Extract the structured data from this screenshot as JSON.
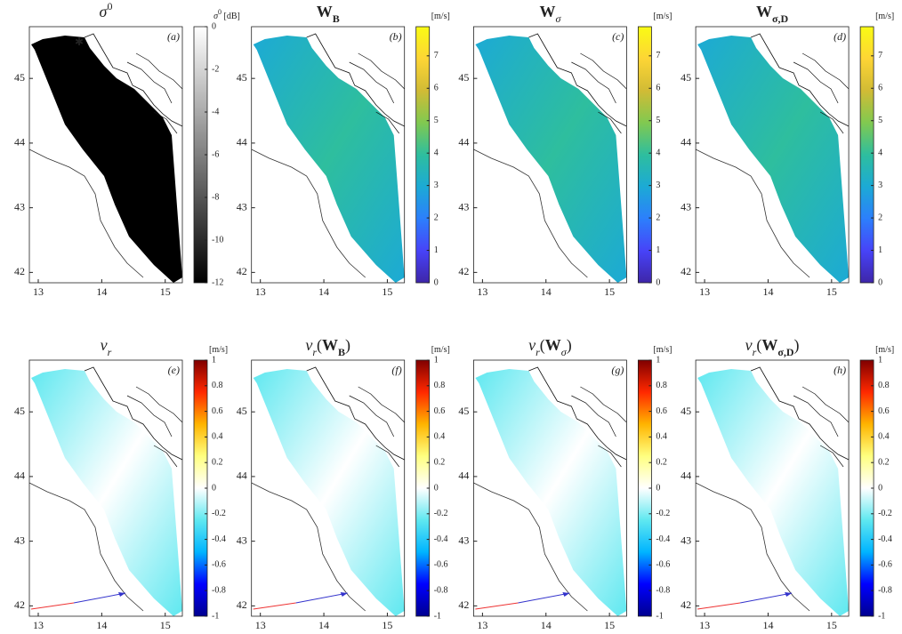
{
  "chart_data": [
    {
      "type": "map",
      "title": [
        {
          "text": "σ",
          "style": "italic"
        },
        {
          "text": "0",
          "style": "sup"
        }
      ],
      "panel_label": "(a)",
      "xlim": [
        12.86,
        15.27
      ],
      "xticks": [
        13,
        14,
        15
      ],
      "ylim": [
        41.84,
        45.8
      ],
      "yticks": [
        42,
        43,
        44,
        45
      ],
      "colorbar": {
        "label": [
          {
            "text": "σ",
            "style": "italic"
          },
          {
            "text": "0",
            "style": "sup"
          },
          {
            "text": " [dB]",
            "style": "plain"
          }
        ],
        "lim": [
          -12,
          0
        ],
        "ticks": [
          -12,
          -10,
          -8,
          -6,
          -4,
          -2,
          0
        ],
        "colormap": [
          "#000000",
          "#ffffff"
        ]
      }
    },
    {
      "type": "map",
      "title": [
        {
          "text": "W",
          "style": "bold"
        },
        {
          "text": "B",
          "style": "bold-sub"
        }
      ],
      "panel_label": "(b)",
      "xlim": [
        12.86,
        15.27
      ],
      "xticks": [
        13,
        14,
        15
      ],
      "ylim": [
        41.84,
        45.8
      ],
      "yticks": [
        42,
        43,
        44,
        45
      ],
      "colorbar": {
        "label": [
          {
            "text": "[m/s]",
            "style": "plain"
          }
        ],
        "lim": [
          0,
          7.9
        ],
        "ticks": [
          0,
          1,
          2,
          3,
          4,
          5,
          6,
          7
        ],
        "colormap": [
          "#3e26a8",
          "#4743f8",
          "#2c7ffc",
          "#1caad5",
          "#2ebe9e",
          "#81c950",
          "#d1bb35",
          "#fdd535",
          "#f9fb14"
        ]
      }
    },
    {
      "type": "map",
      "title": [
        {
          "text": "W",
          "style": "bold"
        },
        {
          "text": "σ",
          "style": "sub"
        }
      ],
      "panel_label": "(c)",
      "xlim": [
        12.86,
        15.27
      ],
      "xticks": [
        13,
        14,
        15
      ],
      "ylim": [
        41.84,
        45.8
      ],
      "yticks": [
        42,
        43,
        44,
        45
      ],
      "colorbar": {
        "label": [
          {
            "text": "[m/s]",
            "style": "plain"
          }
        ],
        "lim": [
          0,
          7.9
        ],
        "ticks": [
          0,
          1,
          2,
          3,
          4,
          5,
          6,
          7
        ],
        "colormap": [
          "#3e26a8",
          "#4743f8",
          "#2c7ffc",
          "#1caad5",
          "#2ebe9e",
          "#81c950",
          "#d1bb35",
          "#fdd535",
          "#f9fb14"
        ]
      }
    },
    {
      "type": "map",
      "title": [
        {
          "text": "W",
          "style": "bold"
        },
        {
          "text": "σ,D",
          "style": "bold-sub"
        }
      ],
      "panel_label": "(d)",
      "xlim": [
        12.86,
        15.27
      ],
      "xticks": [
        13,
        14,
        15
      ],
      "ylim": [
        41.84,
        45.8
      ],
      "yticks": [
        42,
        43,
        44,
        45
      ],
      "colorbar": {
        "label": [
          {
            "text": "[m/s]",
            "style": "plain"
          }
        ],
        "lim": [
          0,
          7.9
        ],
        "ticks": [
          0,
          1,
          2,
          3,
          4,
          5,
          6,
          7
        ],
        "colormap": [
          "#3e26a8",
          "#4743f8",
          "#2c7ffc",
          "#1caad5",
          "#2ebe9e",
          "#81c950",
          "#d1bb35",
          "#fdd535",
          "#f9fb14"
        ]
      }
    },
    {
      "type": "map",
      "title": [
        {
          "text": "v",
          "style": "italic"
        },
        {
          "text": "r",
          "style": "sub"
        }
      ],
      "panel_label": "(e)",
      "xlim": [
        12.86,
        15.27
      ],
      "xticks": [
        13,
        14,
        15
      ],
      "ylim": [
        41.84,
        45.8
      ],
      "yticks": [
        42,
        43,
        44,
        45
      ],
      "colorbar": {
        "label": [
          {
            "text": "[m/s]",
            "style": "plain"
          }
        ],
        "lim": [
          -1,
          1
        ],
        "ticks": [
          -1,
          -0.8,
          -0.6,
          -0.4,
          -0.2,
          0,
          0.2,
          0.4,
          0.6,
          0.8,
          1
        ],
        "colormap": [
          "#00008f",
          "#0000ff",
          "#00b4ff",
          "#5fe8f0",
          "#ffffff",
          "#ffff80",
          "#ffb400",
          "#ff2800",
          "#800000"
        ]
      }
    },
    {
      "type": "map",
      "title": [
        {
          "text": "v",
          "style": "italic"
        },
        {
          "text": "r",
          "style": "sub"
        },
        {
          "text": "(",
          "style": "plain"
        },
        {
          "text": "W",
          "style": "bold"
        },
        {
          "text": "B",
          "style": "bold-sub"
        },
        {
          "text": ")",
          "style": "plain"
        }
      ],
      "panel_label": "(f)",
      "xlim": [
        12.86,
        15.27
      ],
      "xticks": [
        13,
        14,
        15
      ],
      "ylim": [
        41.84,
        45.8
      ],
      "yticks": [
        42,
        43,
        44,
        45
      ],
      "colorbar": {
        "label": [
          {
            "text": "[m/s]",
            "style": "plain"
          }
        ],
        "lim": [
          -1,
          1
        ],
        "ticks": [
          -1,
          -0.8,
          -0.6,
          -0.4,
          -0.2,
          0,
          0.2,
          0.4,
          0.6,
          0.8,
          1
        ],
        "colormap": [
          "#00008f",
          "#0000ff",
          "#00b4ff",
          "#5fe8f0",
          "#ffffff",
          "#ffff80",
          "#ffb400",
          "#ff2800",
          "#800000"
        ]
      }
    },
    {
      "type": "map",
      "title": [
        {
          "text": "v",
          "style": "italic"
        },
        {
          "text": "r",
          "style": "sub"
        },
        {
          "text": "(",
          "style": "plain"
        },
        {
          "text": "W",
          "style": "bold"
        },
        {
          "text": "σ",
          "style": "sub"
        },
        {
          "text": ")",
          "style": "plain"
        }
      ],
      "panel_label": "(g)",
      "xlim": [
        12.86,
        15.27
      ],
      "xticks": [
        13,
        14,
        15
      ],
      "ylim": [
        41.84,
        45.8
      ],
      "yticks": [
        42,
        43,
        44,
        45
      ],
      "colorbar": {
        "label": [
          {
            "text": "[m/s]",
            "style": "plain"
          }
        ],
        "lim": [
          -1,
          1
        ],
        "ticks": [
          -1,
          -0.8,
          -0.6,
          -0.4,
          -0.2,
          0,
          0.2,
          0.4,
          0.6,
          0.8,
          1
        ],
        "colormap": [
          "#00008f",
          "#0000ff",
          "#00b4ff",
          "#5fe8f0",
          "#ffffff",
          "#ffff80",
          "#ffb400",
          "#ff2800",
          "#800000"
        ]
      }
    },
    {
      "type": "map",
      "title": [
        {
          "text": "v",
          "style": "italic"
        },
        {
          "text": "r",
          "style": "sub"
        },
        {
          "text": "(",
          "style": "plain"
        },
        {
          "text": "W",
          "style": "bold"
        },
        {
          "text": "σ,D",
          "style": "bold-sub"
        },
        {
          "text": ")",
          "style": "plain"
        }
      ],
      "panel_label": "(h)",
      "xlim": [
        12.86,
        15.27
      ],
      "xticks": [
        13,
        14,
        15
      ],
      "ylim": [
        41.84,
        45.8
      ],
      "yticks": [
        42,
        43,
        44,
        45
      ],
      "colorbar": {
        "label": [
          {
            "text": "[m/s]",
            "style": "plain"
          }
        ],
        "lim": [
          -1,
          1
        ],
        "ticks": [
          -1,
          -0.8,
          -0.6,
          -0.4,
          -0.2,
          0,
          0.2,
          0.4,
          0.6,
          0.8,
          1
        ],
        "colormap": [
          "#00008f",
          "#0000ff",
          "#00b4ff",
          "#5fe8f0",
          "#ffffff",
          "#ffff80",
          "#ffb400",
          "#ff2800",
          "#800000"
        ]
      }
    }
  ]
}
